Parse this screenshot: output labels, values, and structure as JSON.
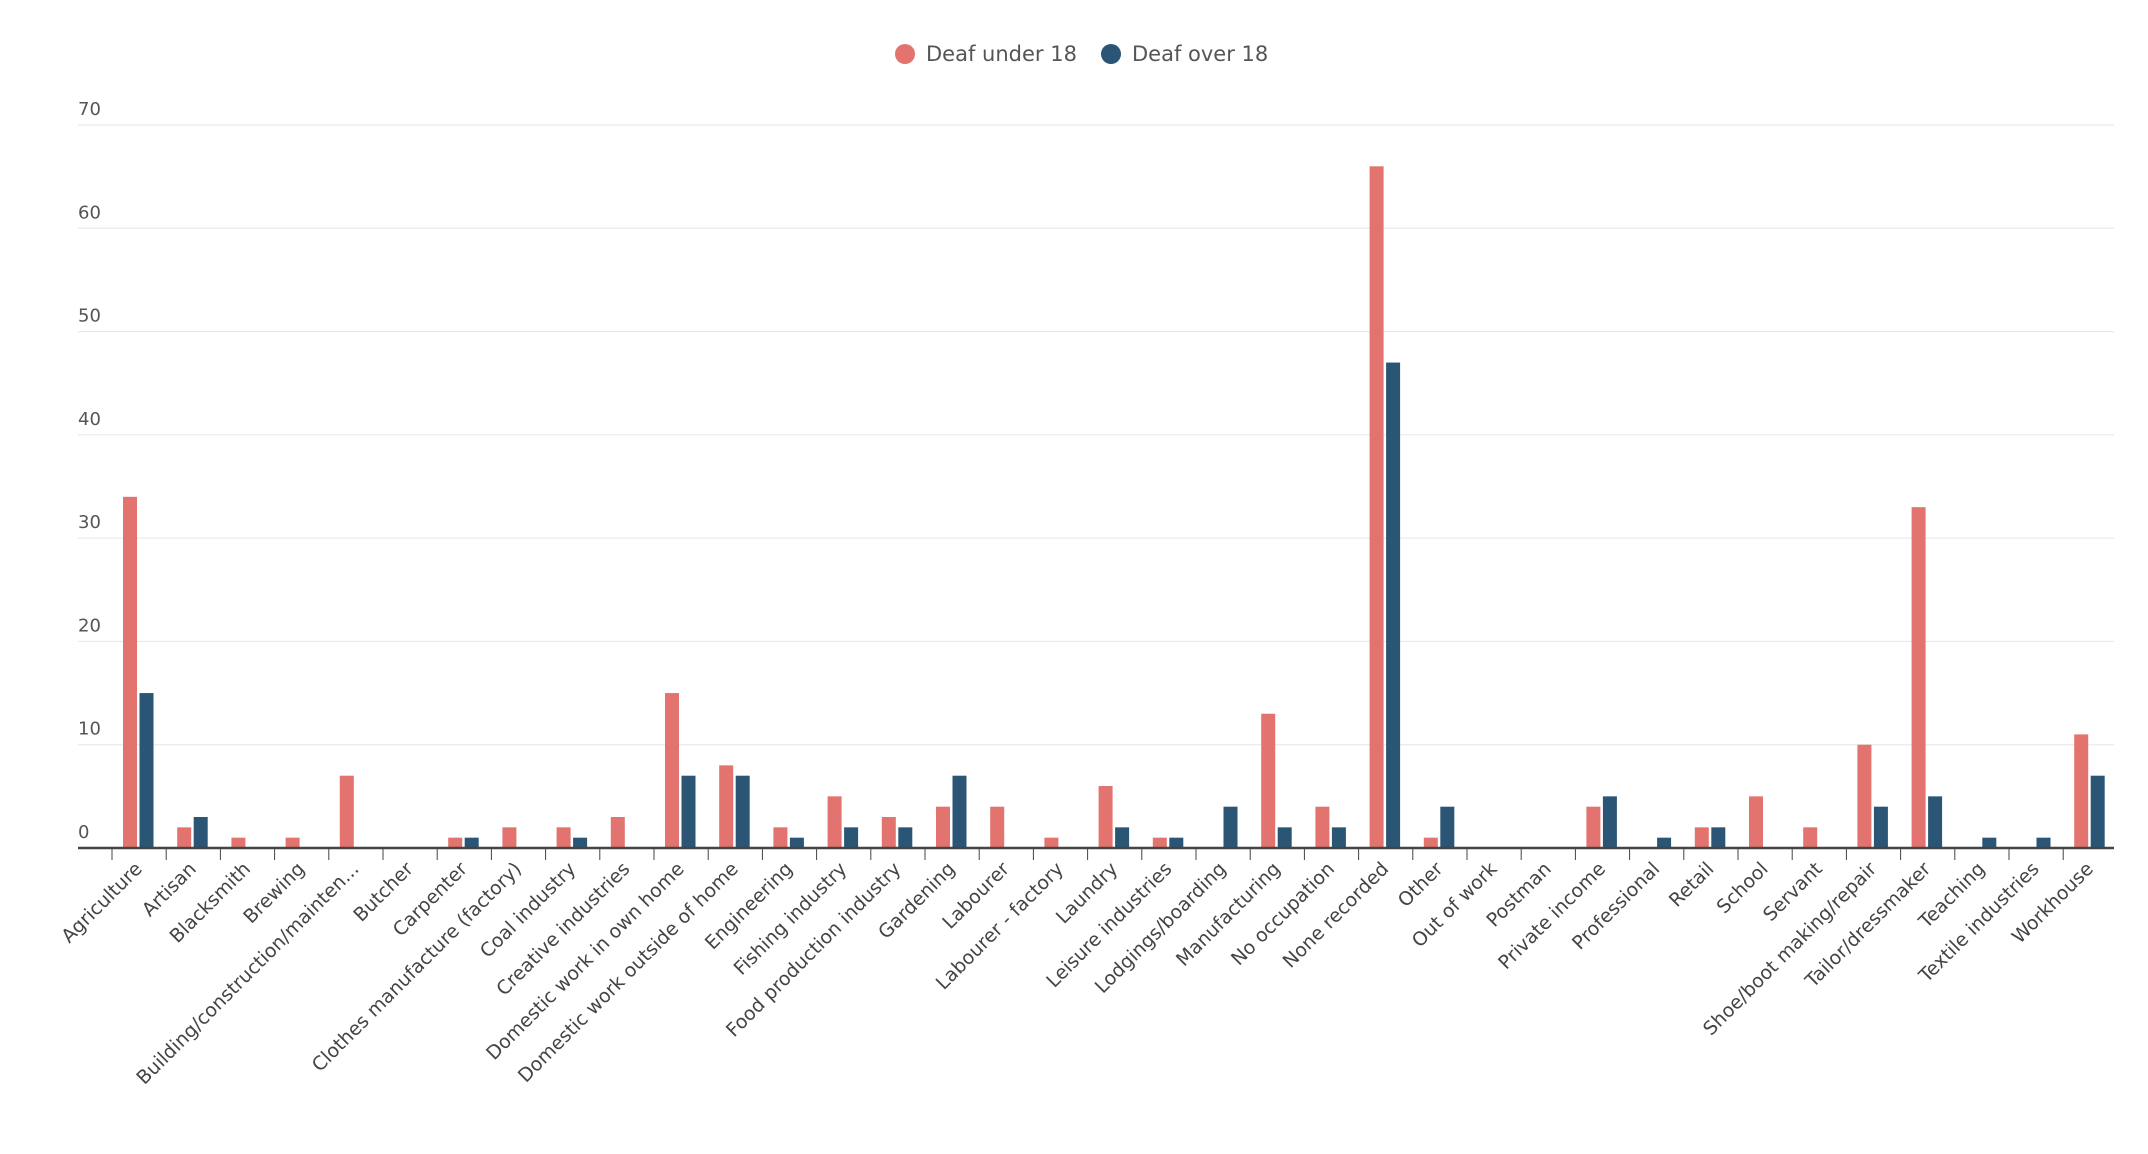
{
  "chart_data": {
    "type": "bar",
    "title": "",
    "xlabel": "",
    "ylabel": "",
    "ylim": [
      0,
      70
    ],
    "yticks": [
      0,
      10,
      20,
      30,
      40,
      50,
      60,
      70
    ],
    "grid": true,
    "legend_position": "top-center",
    "categories": [
      "Agriculture",
      "Artisan",
      "Blacksmith",
      "Brewing",
      "Building/construction/mainten...",
      "Butcher",
      "Carpenter",
      "Clothes manufacture (factory)",
      "Coal industry",
      "Creative industries",
      "Domestic work in own home",
      "Domestic work outside of home",
      "Engineering",
      "Fishing industry",
      "Food production industry",
      "Gardening",
      "Labourer",
      "Labourer - factory",
      "Laundry",
      "Leisure industries",
      "Lodgings/boarding",
      "Manufacturing",
      "No occupation",
      "None recorded",
      "Other",
      "Out of work",
      "Postman",
      "Private income",
      "Professional",
      "Retail",
      "School",
      "Servant",
      "Shoe/boot making/repair",
      "Tailor/dressmaker",
      "Teaching",
      "Textile industries",
      "Workhouse"
    ],
    "series": [
      {
        "name": "Deaf under 18",
        "color": "#e2736f",
        "values": [
          34,
          2,
          1,
          1,
          7,
          0,
          1,
          2,
          2,
          3,
          15,
          8,
          2,
          5,
          3,
          4,
          4,
          1,
          6,
          1,
          0,
          13,
          4,
          66,
          1,
          0,
          0,
          4,
          0,
          2,
          5,
          2,
          10,
          33,
          0,
          0,
          11
        ]
      },
      {
        "name": "Deaf over 18",
        "color": "#2a5575",
        "values": [
          15,
          3,
          0,
          0,
          0,
          0,
          1,
          0,
          1,
          0,
          7,
          7,
          1,
          2,
          2,
          7,
          0,
          0,
          2,
          1,
          4,
          2,
          2,
          47,
          4,
          0,
          0,
          5,
          1,
          2,
          0,
          0,
          4,
          5,
          1,
          1,
          7
        ]
      }
    ]
  }
}
